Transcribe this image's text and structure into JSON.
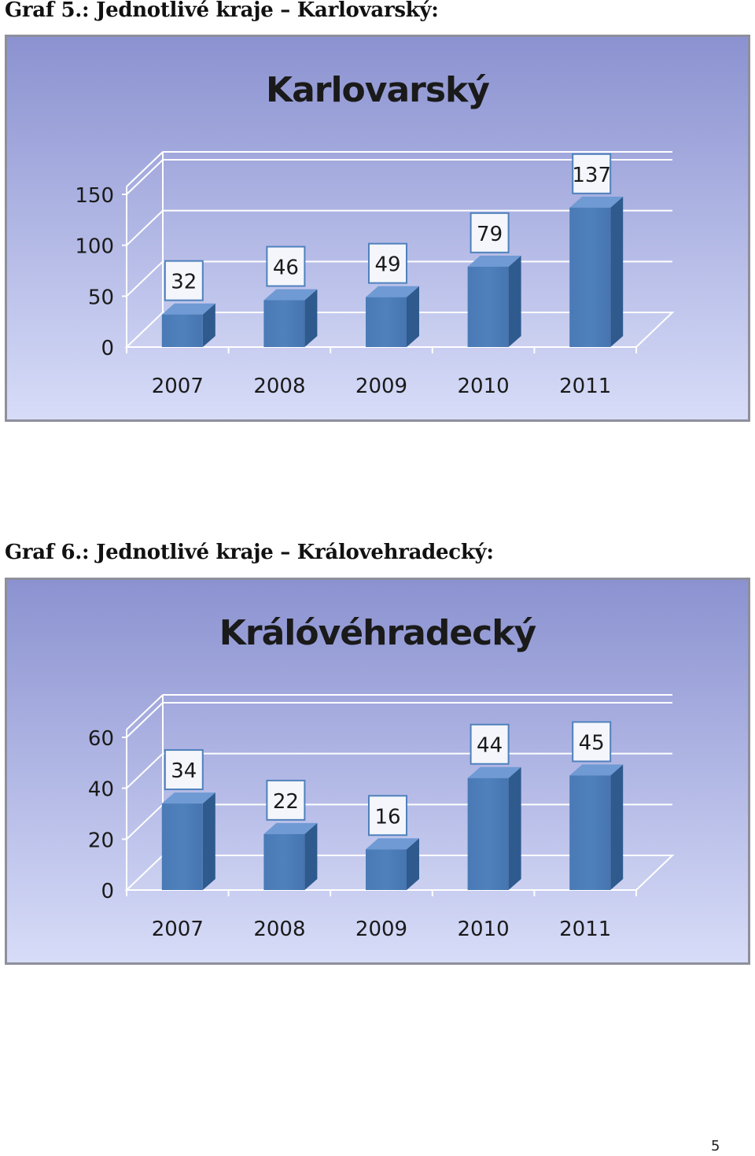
{
  "captions": {
    "graf5": "Graf 5.: Jednotlivé kraje – Karlovarský:",
    "graf6": "Graf 6.: Jednotlivé kraje – Královehradecký:"
  },
  "page_number": "5",
  "colors": {
    "background_top": "#8b92d0",
    "background_bottom": "#d7dcf8",
    "bar_front": "#4f81bd",
    "bar_side": "#2f5a8e",
    "bar_top": "#6f9ad4",
    "gridline": "#ffffff",
    "text": "#1a1a1a"
  },
  "chart_data": [
    {
      "type": "bar",
      "title": "Karlovarský",
      "categories": [
        "2007",
        "2008",
        "2009",
        "2010",
        "2011"
      ],
      "values": [
        32,
        46,
        49,
        79,
        137
      ],
      "yticks": [
        "0",
        "50",
        "100",
        "150"
      ],
      "ylim": [
        0,
        150
      ],
      "grid": true,
      "style": "3d-column"
    },
    {
      "type": "bar",
      "title": "Králóvéhradecký",
      "categories": [
        "2007",
        "2008",
        "2009",
        "2010",
        "2011"
      ],
      "values": [
        34,
        22,
        16,
        44,
        45
      ],
      "yticks": [
        "0",
        "20",
        "40",
        "60"
      ],
      "ylim": [
        0,
        60
      ],
      "grid": true,
      "style": "3d-column"
    }
  ]
}
